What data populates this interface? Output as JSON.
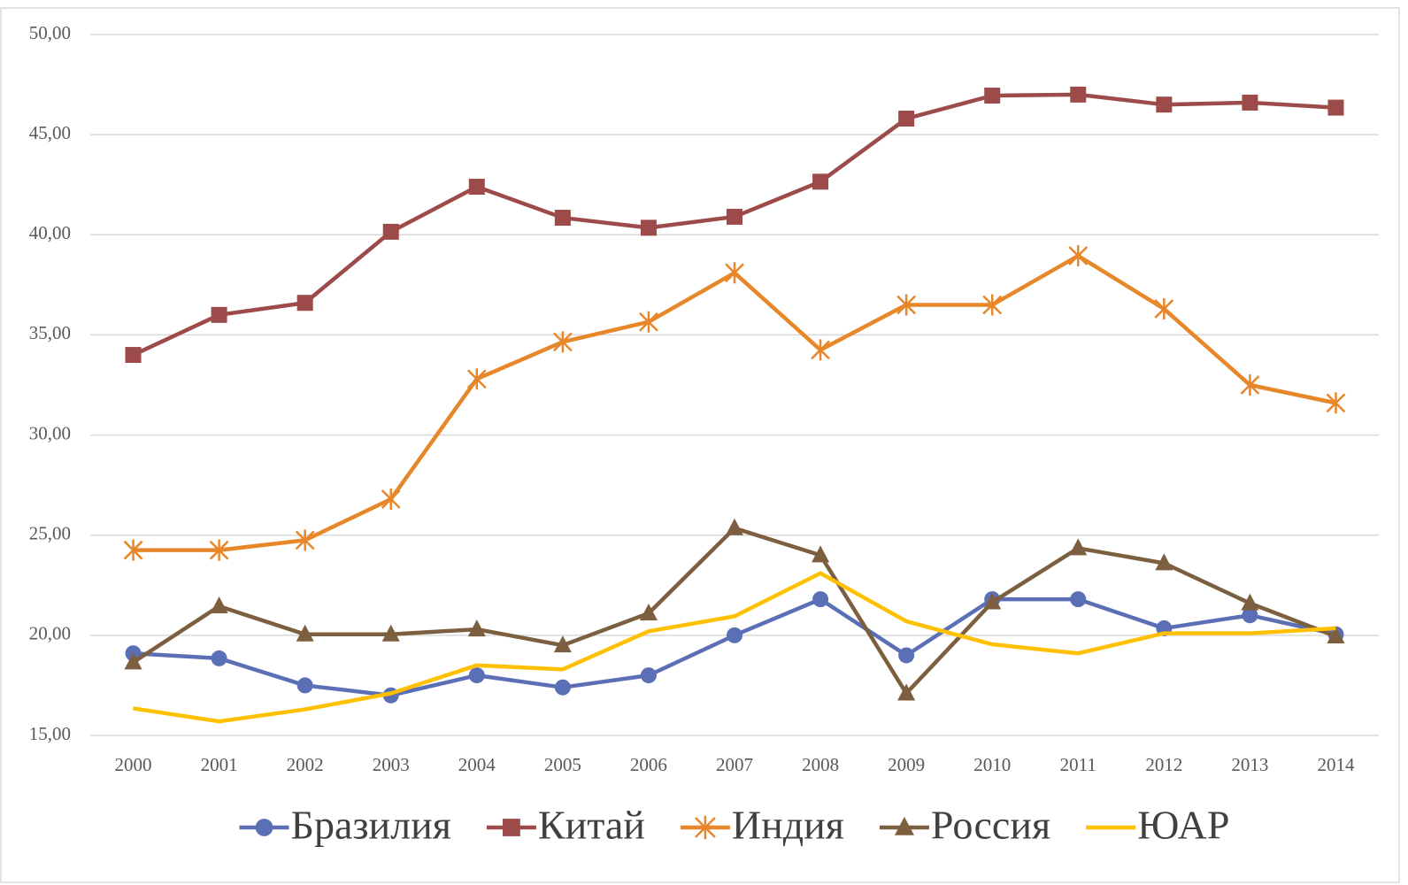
{
  "chart_data": {
    "type": "line",
    "categories": [
      "2000",
      "2001",
      "2002",
      "2003",
      "2004",
      "2005",
      "2006",
      "2007",
      "2008",
      "2009",
      "2010",
      "2011",
      "2012",
      "2013",
      "2014"
    ],
    "series": [
      {
        "name": "Бразилия",
        "color": "#5b6fb6",
        "marker": "circle",
        "values": [
          19.1,
          18.85,
          17.5,
          17.0,
          18.0,
          17.4,
          18.0,
          20.0,
          21.8,
          19.0,
          21.8,
          21.8,
          20.35,
          21.0,
          20.05
        ]
      },
      {
        "name": "Китай",
        "color": "#9c4a4a",
        "marker": "square",
        "values": [
          34.0,
          36.0,
          36.6,
          40.15,
          42.4,
          40.85,
          40.35,
          40.9,
          42.65,
          45.8,
          46.95,
          47.0,
          46.5,
          46.6,
          46.35
        ]
      },
      {
        "name": "Индия",
        "color": "#e8862a",
        "marker": "star",
        "values": [
          24.25,
          24.25,
          24.75,
          26.8,
          32.8,
          34.65,
          35.65,
          38.1,
          34.25,
          36.5,
          36.5,
          38.95,
          36.3,
          32.5,
          31.6
        ]
      },
      {
        "name": "Россия",
        "color": "#7b5f3e",
        "marker": "triangle",
        "values": [
          18.65,
          21.45,
          20.05,
          20.05,
          20.3,
          19.5,
          21.1,
          25.35,
          24.0,
          17.1,
          21.65,
          24.35,
          23.6,
          21.6,
          19.95
        ]
      },
      {
        "name": "ЮАР",
        "color": "#ffc000",
        "marker": "none",
        "values": [
          16.35,
          15.7,
          16.3,
          17.1,
          18.5,
          18.3,
          20.2,
          20.95,
          23.1,
          20.7,
          19.55,
          19.1,
          20.1,
          20.1,
          20.35
        ]
      }
    ],
    "ylim": [
      15,
      50
    ],
    "yticks": [
      {
        "value": 15,
        "label": "15,00"
      },
      {
        "value": 20,
        "label": "20,00"
      },
      {
        "value": 25,
        "label": "25,00"
      },
      {
        "value": 30,
        "label": "30,00"
      },
      {
        "value": 35,
        "label": "35,00"
      },
      {
        "value": 40,
        "label": "40,00"
      },
      {
        "value": 45,
        "label": "45,00"
      },
      {
        "value": 50,
        "label": "50,00"
      }
    ],
    "grid": true,
    "legend": "bottom"
  }
}
